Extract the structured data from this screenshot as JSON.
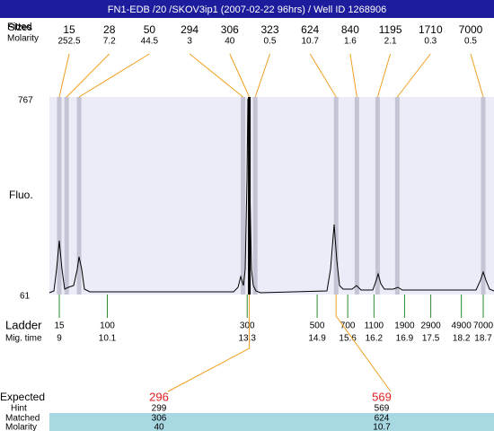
{
  "title": "FN1-EDB /20 /SKOV3ip1 (2007-02-22 96hrs) / Well ID 1268906",
  "peaks": {
    "label_fitted": "Fitted",
    "label_sizes": "Sizes",
    "label_molarity": "Molarity",
    "sizes": [
      15,
      28,
      50,
      294,
      306,
      323,
      624,
      840,
      1195,
      1710,
      7000
    ],
    "molarity": [
      252.5,
      7.2,
      44.5,
      3,
      40,
      0.5,
      10.7,
      1.6,
      2.1,
      0.3,
      0.5
    ]
  },
  "axis": {
    "top": 767,
    "bottom": 61,
    "label": "Fluo."
  },
  "ladder": {
    "label": "Ladder",
    "time_label": "Mig. time",
    "sizes": [
      15,
      100,
      300,
      500,
      700,
      1100,
      1900,
      2900,
      4900,
      7000
    ],
    "mig_times": [
      9,
      10.1,
      13.3,
      14.9,
      15.6,
      16.2,
      16.9,
      17.5,
      18.2,
      18.7
    ]
  },
  "table": {
    "labels": [
      "Expected",
      "Hint",
      "Matched",
      "Molarity"
    ],
    "expected": [
      296,
      569
    ],
    "hint": [
      299,
      569
    ],
    "matched": [
      306,
      624
    ],
    "molarity": [
      40,
      10.7
    ]
  }
}
